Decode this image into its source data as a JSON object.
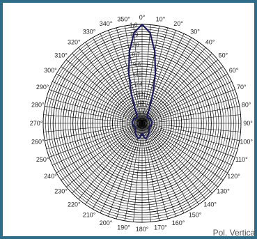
{
  "chart_data": {
    "type": "polar",
    "angle_tick_labels": [
      "0°",
      "10°",
      "20°",
      "30°",
      "40°",
      "50°",
      "60°",
      "70°",
      "80°",
      "90°",
      "100°",
      "110°",
      "120°",
      "130°",
      "140°",
      "150°",
      "160°",
      "170°",
      "180°",
      "190°",
      "200°",
      "210°",
      "220°",
      "230°",
      "240°",
      "250°",
      "260°",
      "270°",
      "280°",
      "290°",
      "300°",
      "310°",
      "320°",
      "330°",
      "340°",
      "350°"
    ],
    "radial_tick_labels": [
      "0.0",
      "0.1",
      "0.2",
      "0.3",
      "0.4",
      "0.5",
      "0.6",
      "0.7",
      "0.8",
      "0.9",
      "1.0"
    ],
    "radial_range": [
      0,
      1
    ],
    "radial_label_angle_deg": 355,
    "grid": true,
    "angle_spoke_step_deg": 5,
    "annotation": "Pol. Vertical",
    "series": [
      {
        "color": "#1a1a5e",
        "angles_deg": [
          0,
          5,
          10,
          15,
          20,
          25,
          30,
          35,
          40,
          45,
          60,
          75,
          90,
          105,
          120,
          135,
          150,
          165,
          170,
          175,
          180,
          185,
          190,
          195,
          210,
          225,
          240,
          255,
          270,
          285,
          300,
          315,
          320,
          325,
          330,
          335,
          340,
          345,
          350,
          355
        ],
        "values": [
          1.0,
          0.92,
          0.74,
          0.52,
          0.32,
          0.18,
          0.12,
          0.09,
          0.08,
          0.08,
          0.09,
          0.1,
          0.1,
          0.09,
          0.08,
          0.1,
          0.13,
          0.16,
          0.15,
          0.12,
          0.1,
          0.12,
          0.15,
          0.16,
          0.13,
          0.1,
          0.08,
          0.09,
          0.1,
          0.1,
          0.09,
          0.08,
          0.08,
          0.09,
          0.12,
          0.18,
          0.32,
          0.52,
          0.74,
          0.92
        ]
      }
    ]
  }
}
